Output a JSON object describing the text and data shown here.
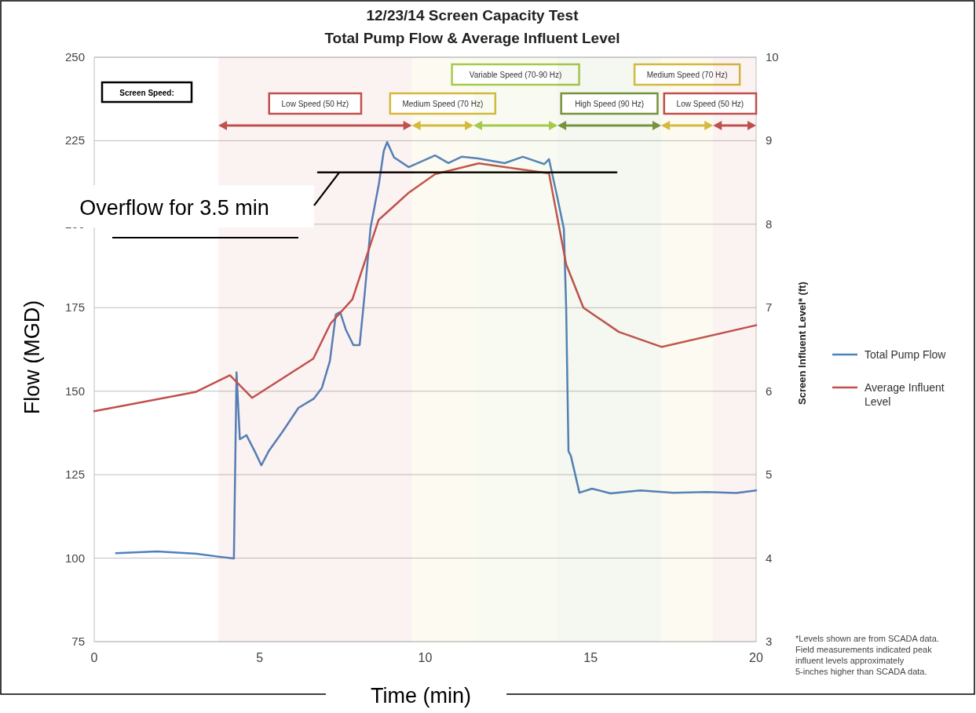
{
  "chart_data": {
    "type": "line",
    "title": "12/23/14 Screen Capacity Test",
    "subtitle": "Total Pump Flow & Average Influent Level",
    "xlabel": "Time (min)",
    "ylabel": "Flow (MGD)",
    "y2label": "Screen Influent Level* (ft)",
    "xlim": [
      0,
      20
    ],
    "xticks": [
      0,
      5,
      10,
      15,
      20
    ],
    "ylim": [
      75,
      250
    ],
    "yticks": [
      75,
      100,
      125,
      150,
      175,
      200,
      225,
      250
    ],
    "y2lim": [
      3,
      10
    ],
    "y2ticks": [
      3,
      4,
      5,
      6,
      7,
      8,
      9,
      10
    ],
    "grid": "y",
    "legend": "right",
    "series": [
      {
        "name": "Total Pump Flow",
        "color": "#4f81bd",
        "x": [
          0.66,
          1.9,
          3.1,
          3.8,
          4.22,
          4.3,
          4.4,
          4.6,
          4.85,
          5.05,
          5.27,
          5.7,
          6.17,
          6.64,
          6.88,
          7.12,
          7.3,
          7.43,
          7.6,
          7.83,
          8.02,
          8.18,
          8.35,
          8.6,
          8.75,
          8.85,
          9.06,
          9.5,
          10.3,
          10.7,
          11.1,
          11.6,
          12.4,
          12.95,
          13.6,
          13.74,
          14.0,
          14.19,
          14.26,
          14.33,
          14.4,
          14.66,
          15.04,
          15.6,
          16.5,
          17.5,
          18.5,
          19.4,
          20
        ],
        "values": [
          101.5,
          102,
          101.3,
          100.4,
          99.9,
          155.6,
          135.6,
          136.8,
          132,
          127.8,
          132,
          138,
          145,
          147.8,
          151,
          159,
          173,
          173.7,
          168.5,
          163.8,
          163.8,
          180,
          199,
          212,
          222,
          224.6,
          220,
          217.1,
          220.6,
          218.3,
          220.2,
          219.7,
          218.3,
          220.2,
          218,
          219.5,
          207.7,
          198.6,
          175,
          132,
          130.7,
          119.6,
          120.8,
          119.4,
          120.3,
          119.6,
          119.8,
          119.5,
          120.3
        ]
      },
      {
        "name": "Average Influent Level",
        "color": "#c0504d",
        "axis": "y2",
        "x": [
          0,
          3.06,
          4.1,
          4.77,
          6.62,
          7.14,
          7.8,
          8.59,
          9.51,
          10.3,
          11.62,
          13.74,
          14.26,
          14.78,
          15.85,
          17.15,
          20
        ],
        "values": [
          5.76,
          5.99,
          6.19,
          5.92,
          6.39,
          6.81,
          7.1,
          8.05,
          8.38,
          8.6,
          8.73,
          8.61,
          7.52,
          7.0,
          6.71,
          6.53,
          6.79
        ]
      },
      {
        "color": "#000000",
        "axis": "y2",
        "x": [
          6.76,
          15.78
        ],
        "values": [
          8.62,
          8.62
        ]
      }
    ],
    "bands": [
      {
        "axis": "x",
        "from": 3.75,
        "to": 9.6,
        "label": "Low Speed (50 Hz)",
        "color": "#c0504d"
      },
      {
        "axis": "x",
        "from": 9.6,
        "to": 11.46,
        "label": "Medium Speed (70 Hz)",
        "color": "#d4b93c"
      },
      {
        "axis": "x",
        "from": 11.46,
        "to": 14.0,
        "label": "Variable Speed (70-90 Hz)",
        "color": "#a6c94a"
      },
      {
        "axis": "x",
        "from": 14.0,
        "to": 17.13,
        "label": "High Speed (90 Hz)",
        "color": "#77933c"
      },
      {
        "axis": "x",
        "from": 17.13,
        "to": 18.7,
        "label": "Medium Speed (70 Hz)",
        "color": "#d4b93c"
      },
      {
        "axis": "x",
        "from": 18.7,
        "to": 20,
        "label": "Low Speed (50 Hz)",
        "color": "#c0504d"
      }
    ],
    "annotations": [
      "Screen Speed:",
      "Overflow for 3.5 min",
      "*Levels shown are from SCADA data.  Field measurements indicated peak influent levels approximately 5-inches higher than SCADA data."
    ]
  }
}
